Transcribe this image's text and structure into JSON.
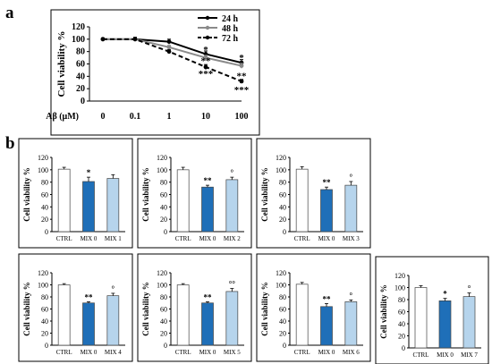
{
  "panel_labels": {
    "a": "a",
    "b": "b"
  },
  "chart_data": [
    {
      "id": "a",
      "type": "line",
      "ylabel": "Cell viability %",
      "x_prefix": "Aβ (μM)",
      "categories": [
        "0",
        "0.1",
        "1",
        "10",
        "100"
      ],
      "yticks": [
        "0",
        "20",
        "40",
        "60",
        "80",
        "100",
        "120"
      ],
      "ylim": [
        0,
        120
      ],
      "legend_position": "top-right",
      "series": [
        {
          "name": "24 h",
          "values": [
            100,
            100,
            96,
            76,
            62
          ],
          "errors": [
            2,
            3,
            4,
            5,
            5
          ],
          "color": "#000000",
          "dash": "solid"
        },
        {
          "name": "48 h",
          "values": [
            100,
            100,
            87,
            70,
            57
          ],
          "errors": [
            2,
            3,
            3,
            4,
            4
          ],
          "color": "#8a8a8a",
          "dash": "solid"
        },
        {
          "name": "72 h",
          "values": [
            100,
            100,
            80,
            55,
            32
          ],
          "errors": [
            2,
            3,
            3,
            4,
            3
          ],
          "color": "#000000",
          "dash": "dashed"
        }
      ],
      "annotations": [
        {
          "x": "10",
          "y": 84,
          "text": "*"
        },
        {
          "x": "10",
          "y": 66,
          "text": "**"
        },
        {
          "x": "10",
          "y": 45,
          "text": "***"
        },
        {
          "x": "100",
          "y": 71,
          "text": "*"
        },
        {
          "x": "100",
          "y": 41,
          "text": "**"
        },
        {
          "x": "100",
          "y": 19,
          "text": "***"
        }
      ]
    },
    {
      "id": "b1",
      "type": "bar",
      "ylabel": "Cell viability %",
      "ylim": [
        0,
        120
      ],
      "yticks": [
        "0",
        "20",
        "40",
        "60",
        "80",
        "100",
        "120"
      ],
      "categories": [
        "CTRL",
        "MIX 0",
        "MIX 1"
      ],
      "values": [
        101,
        81,
        86
      ],
      "errors": [
        3,
        7,
        6
      ],
      "colors": [
        "#ffffff",
        "#1f6fb8",
        "#b6d4ec"
      ],
      "marks": [
        "",
        "*",
        ""
      ]
    },
    {
      "id": "b2",
      "type": "bar",
      "ylabel": "Cell viability %",
      "ylim": [
        0,
        120
      ],
      "yticks": [
        "0",
        "20",
        "40",
        "60",
        "80",
        "100",
        "120"
      ],
      "categories": [
        "CTRL",
        "MIX 0",
        "MIX 2"
      ],
      "values": [
        100,
        72,
        84
      ],
      "errors": [
        4,
        3,
        4
      ],
      "colors": [
        "#ffffff",
        "#1f6fb8",
        "#b6d4ec"
      ],
      "marks": [
        "",
        "**",
        "°"
      ]
    },
    {
      "id": "b3",
      "type": "bar",
      "ylabel": "Cell viability %",
      "ylim": [
        0,
        120
      ],
      "yticks": [
        "0",
        "20",
        "40",
        "60",
        "80",
        "100",
        "120"
      ],
      "categories": [
        "CTRL",
        "MIX 0",
        "MIX 3"
      ],
      "values": [
        101,
        68,
        75
      ],
      "errors": [
        4,
        4,
        6
      ],
      "colors": [
        "#ffffff",
        "#1f6fb8",
        "#b6d4ec"
      ],
      "marks": [
        "",
        "**",
        "°"
      ]
    },
    {
      "id": "b4",
      "type": "bar",
      "ylabel": "Cell viability %",
      "ylim": [
        0,
        120
      ],
      "yticks": [
        "0",
        "20",
        "40",
        "60",
        "80",
        "100",
        "120"
      ],
      "categories": [
        "CTRL",
        "MIX 0",
        "MIX 4"
      ],
      "values": [
        100,
        70,
        82
      ],
      "errors": [
        2,
        2,
        4
      ],
      "colors": [
        "#ffffff",
        "#1f6fb8",
        "#b6d4ec"
      ],
      "marks": [
        "",
        "**",
        "°"
      ]
    },
    {
      "id": "b5",
      "type": "bar",
      "ylabel": "Cell viability %",
      "ylim": [
        0,
        120
      ],
      "yticks": [
        "0",
        "20",
        "40",
        "60",
        "80",
        "100",
        "120"
      ],
      "categories": [
        "CTRL",
        "MIX 0",
        "MIX 5"
      ],
      "values": [
        100,
        70,
        89
      ],
      "errors": [
        2,
        2,
        5
      ],
      "colors": [
        "#ffffff",
        "#1f6fb8",
        "#b6d4ec"
      ],
      "marks": [
        "",
        "**",
        "°°"
      ]
    },
    {
      "id": "b6",
      "type": "bar",
      "ylabel": "Cell viability %",
      "ylim": [
        0,
        120
      ],
      "yticks": [
        "0",
        "20",
        "40",
        "60",
        "80",
        "100",
        "120"
      ],
      "categories": [
        "CTRL",
        "MIX 0",
        "MIX 6"
      ],
      "values": [
        101,
        64,
        72
      ],
      "errors": [
        3,
        5,
        3
      ],
      "colors": [
        "#ffffff",
        "#1f6fb8",
        "#b6d4ec"
      ],
      "marks": [
        "",
        "**",
        "°"
      ]
    },
    {
      "id": "b7",
      "type": "bar",
      "ylabel": "Cell viability %",
      "ylim": [
        0,
        120
      ],
      "yticks": [
        "0",
        "20",
        "40",
        "60",
        "80",
        "100",
        "120"
      ],
      "categories": [
        "CTRL",
        "MIX 0",
        "MIX 7"
      ],
      "values": [
        100,
        78,
        85
      ],
      "errors": [
        3,
        4,
        6
      ],
      "colors": [
        "#ffffff",
        "#1f6fb8",
        "#b6d4ec"
      ],
      "marks": [
        "",
        "*",
        "°"
      ]
    }
  ]
}
